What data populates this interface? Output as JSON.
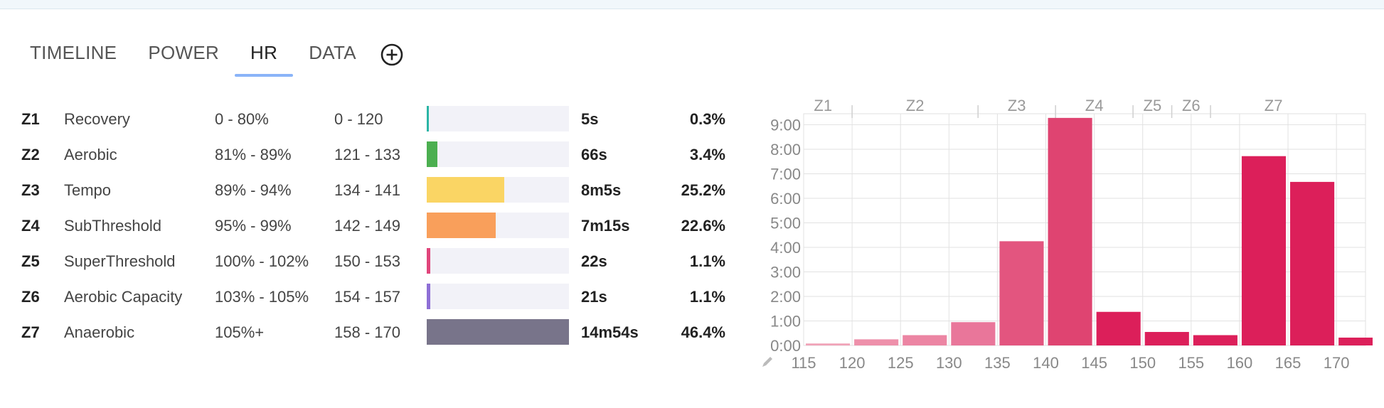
{
  "tabs": [
    {
      "label": "TIMELINE",
      "active": false
    },
    {
      "label": "POWER",
      "active": false
    },
    {
      "label": "HR",
      "active": true
    },
    {
      "label": "DATA",
      "active": false
    }
  ],
  "add_tab_icon": "plus-circle-icon",
  "edit_icon": "pencil-icon",
  "zones": [
    {
      "code": "Z1",
      "name": "Recovery",
      "pct_range": "0 - 80%",
      "hr_range": "0 - 120",
      "time": "5s",
      "percent": "0.3%",
      "fraction": 0.003,
      "color": "#2bb5a5"
    },
    {
      "code": "Z2",
      "name": "Aerobic",
      "pct_range": "81% - 89%",
      "hr_range": "121 - 133",
      "time": "66s",
      "percent": "3.4%",
      "fraction": 0.034,
      "color": "#4caf50"
    },
    {
      "code": "Z3",
      "name": "Tempo",
      "pct_range": "89% - 94%",
      "hr_range": "134 - 141",
      "time": "8m5s",
      "percent": "25.2%",
      "fraction": 0.252,
      "color": "#fad564"
    },
    {
      "code": "Z4",
      "name": "SubThreshold",
      "pct_range": "95% - 99%",
      "hr_range": "142 - 149",
      "time": "7m15s",
      "percent": "22.6%",
      "fraction": 0.226,
      "color": "#f99f5b"
    },
    {
      "code": "Z5",
      "name": "SuperThreshold",
      "pct_range": "100% - 102%",
      "hr_range": "150 - 153",
      "time": "22s",
      "percent": "1.1%",
      "fraction": 0.011,
      "color": "#e0457b"
    },
    {
      "code": "Z6",
      "name": "Aerobic Capacity",
      "pct_range": "103% - 105%",
      "hr_range": "154 - 157",
      "time": "21s",
      "percent": "1.1%",
      "fraction": 0.011,
      "color": "#8e6fd6"
    },
    {
      "code": "Z7",
      "name": "Anaerobic",
      "pct_range": "105%+",
      "hr_range": "158 - 170",
      "time": "14m54s",
      "percent": "46.4%",
      "fraction": 0.464,
      "color": "#78748a"
    }
  ],
  "chart_data": {
    "type": "bar",
    "title": "",
    "xlabel": "",
    "ylabel": "",
    "bin_width": 5,
    "x": [
      115,
      120,
      125,
      130,
      135,
      140,
      145,
      150,
      155,
      160,
      165,
      170
    ],
    "values": [
      0.08,
      0.25,
      0.42,
      0.95,
      4.25,
      9.28,
      1.37,
      0.55,
      0.42,
      7.72,
      6.67,
      0.32
    ],
    "bar_colors": [
      "#f0a3b8",
      "#ee90aa",
      "#ec85a3",
      "#e9769a",
      "#e3557f",
      "#df4471",
      "#dc1f5a",
      "#dc1f5a",
      "#dc1f5a",
      "#dc1f5a",
      "#dc1f5a",
      "#dc1f5a"
    ],
    "xlim": [
      115,
      173
    ],
    "ylim": [
      0,
      9.45
    ],
    "y_ticks": [
      0,
      1,
      2,
      3,
      4,
      5,
      6,
      7,
      8,
      9
    ],
    "y_tick_labels": [
      "0:00",
      "1:00",
      "2:00",
      "3:00",
      "4:00",
      "5:00",
      "6:00",
      "7:00",
      "8:00",
      "9:00"
    ],
    "x_ticks": [
      115,
      120,
      125,
      130,
      135,
      140,
      145,
      150,
      155,
      160,
      165,
      170
    ],
    "x_tick_labels": [
      "115",
      "120",
      "125",
      "130",
      "135",
      "140",
      "145",
      "150",
      "155",
      "160",
      "165",
      "170"
    ],
    "zone_boundaries": [
      120,
      133,
      141,
      149,
      153,
      157
    ],
    "zone_labels": [
      {
        "label": "Z1",
        "x": 117
      },
      {
        "label": "Z2",
        "x": 126.5
      },
      {
        "label": "Z3",
        "x": 137
      },
      {
        "label": "Z4",
        "x": 145
      },
      {
        "label": "Z5",
        "x": 151
      },
      {
        "label": "Z6",
        "x": 155
      },
      {
        "label": "Z7",
        "x": 163.5
      }
    ],
    "grid": true
  }
}
